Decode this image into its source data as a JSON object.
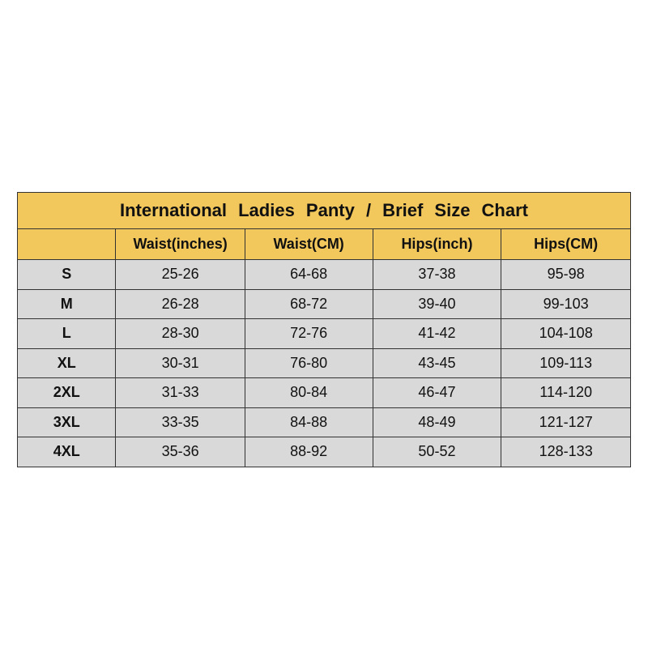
{
  "title": "International Ladies Panty / Brief Size Chart",
  "colors": {
    "header": "#f2c75b",
    "body": "#d9d9d9"
  },
  "headers": [
    "",
    "Waist(inches)",
    "Waist(CM)",
    "Hips(inch)",
    "Hips(CM)"
  ],
  "rows": [
    [
      "S",
      "25-26",
      "64-68",
      "37-38",
      "95-98"
    ],
    [
      "M",
      "26-28",
      "68-72",
      "39-40",
      "99-103"
    ],
    [
      "L",
      "28-30",
      "72-76",
      "41-42",
      "104-108"
    ],
    [
      "XL",
      "30-31",
      "76-80",
      "43-45",
      "109-113"
    ],
    [
      "2XL",
      "31-33",
      "80-84",
      "46-47",
      "114-120"
    ],
    [
      "3XL",
      "33-35",
      "84-88",
      "48-49",
      "121-127"
    ],
    [
      "4XL",
      "35-36",
      "88-92",
      "50-52",
      "128-133"
    ]
  ]
}
